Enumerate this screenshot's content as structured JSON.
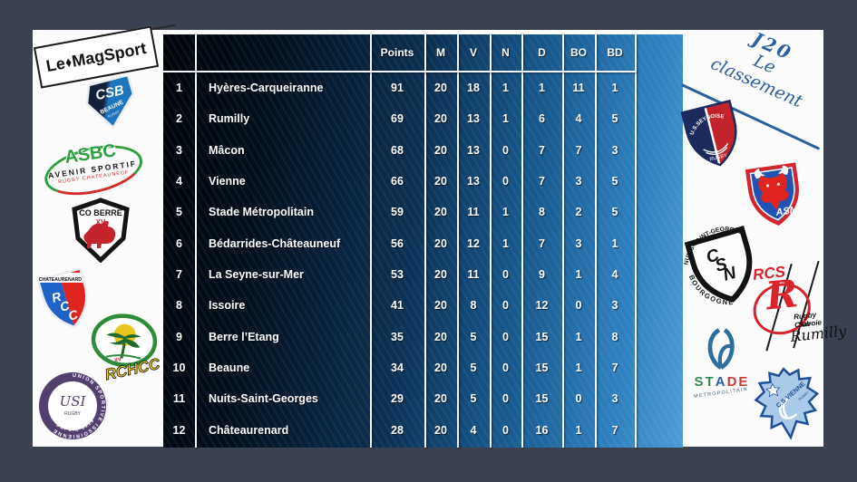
{
  "branding": {
    "prefix": "Le",
    "suffix": "MagSport"
  },
  "title": {
    "round": "J20",
    "label": "Le classement"
  },
  "table": {
    "columns": [
      "Points",
      "M",
      "V",
      "N",
      "D",
      "BO",
      "BD"
    ],
    "rows": [
      {
        "rank": "1",
        "team": "Hyères-Carqueiranne",
        "points": "91",
        "m": "20",
        "v": "18",
        "n": "1",
        "d": "1",
        "bo": "11",
        "bd": "1"
      },
      {
        "rank": "2",
        "team": "Rumilly",
        "points": "69",
        "m": "20",
        "v": "13",
        "n": "1",
        "d": "6",
        "bo": "4",
        "bd": "5"
      },
      {
        "rank": "3",
        "team": "Mâcon",
        "points": "68",
        "m": "20",
        "v": "13",
        "n": "0",
        "d": "7",
        "bo": "7",
        "bd": "3"
      },
      {
        "rank": "4",
        "team": "Vienne",
        "points": "66",
        "m": "20",
        "v": "13",
        "n": "0",
        "d": "7",
        "bo": "3",
        "bd": "5"
      },
      {
        "rank": "5",
        "team": "Stade Métropolitain",
        "points": "59",
        "m": "20",
        "v": "11",
        "n": "1",
        "d": "8",
        "bo": "2",
        "bd": "5"
      },
      {
        "rank": "6",
        "team": "Bédarrides-Châteauneuf",
        "points": "56",
        "m": "20",
        "v": "12",
        "n": "1",
        "d": "7",
        "bo": "3",
        "bd": "1"
      },
      {
        "rank": "7",
        "team": "La Seyne-sur-Mer",
        "points": "53",
        "m": "20",
        "v": "11",
        "n": "0",
        "d": "9",
        "bo": "1",
        "bd": "4"
      },
      {
        "rank": "8",
        "team": "Issoire",
        "points": "41",
        "m": "20",
        "v": "8",
        "n": "0",
        "d": "12",
        "bo": "0",
        "bd": "3"
      },
      {
        "rank": "9",
        "team": "Berre l’Etang",
        "points": "35",
        "m": "20",
        "v": "5",
        "n": "0",
        "d": "15",
        "bo": "1",
        "bd": "8"
      },
      {
        "rank": "10",
        "team": "Beaune",
        "points": "34",
        "m": "20",
        "v": "5",
        "n": "0",
        "d": "15",
        "bo": "1",
        "bd": "7"
      },
      {
        "rank": "11",
        "team": "Nuits-Saint-Georges",
        "points": "29",
        "m": "20",
        "v": "5",
        "n": "0",
        "d": "15",
        "bo": "0",
        "bd": "3"
      },
      {
        "rank": "12",
        "team": "Châteaurenard",
        "points": "28",
        "m": "20",
        "v": "4",
        "n": "0",
        "d": "16",
        "bo": "1",
        "bd": "7"
      }
    ]
  },
  "left_logos": [
    {
      "id": "csb-beaune",
      "abbr": "CSB",
      "line1": "BEAUNE",
      "line2": "RUGBY"
    },
    {
      "id": "asbc-avenir",
      "abbr": "ASBC",
      "title": "AVENIR SPORTIF",
      "subtitle": "RUGBY CHATEAUNEUF"
    },
    {
      "id": "co-berre",
      "title": "CO BERRE",
      "roman": "XV"
    },
    {
      "id": "rcc-chateaurenard",
      "abbr": "RCC",
      "title": "CHATEAURENARD"
    },
    {
      "id": "rchcc",
      "abbr": "RCHCC",
      "roman": "XV"
    },
    {
      "id": "us-issoire",
      "title": "UNION SPORTIVE ISSOIRIENNE",
      "center": "USI",
      "subtitle": "RUGBY",
      "since": "DEPUIS 1919"
    }
  ],
  "right_logos": [
    {
      "id": "us-seynoise",
      "title": "U.S.SEYNOISE",
      "subtitle": "RUGBY"
    },
    {
      "id": "asm",
      "abbr": "ASM"
    },
    {
      "id": "csn-nuits",
      "abbr": "CSN",
      "arc_top": "NUITS-SAINT-GEORGES",
      "arc_bottom": "BOURGOGNE"
    },
    {
      "id": "rcs-rumilly",
      "abbr": "RCS",
      "letter": "R",
      "line1": "Rugby Club",
      "line2": "Savoie",
      "line3": "Rumilly"
    },
    {
      "id": "stade-metropolitain",
      "title": "STADE",
      "subtitle": "METROPOLITAIN"
    },
    {
      "id": "cs-vienne",
      "title": "C.S VIENNE",
      "subtitle": "RUGBY"
    }
  ],
  "colors": {
    "accent_blue": "#2c5f9e",
    "board_light": "#4e9bd6",
    "board_dark": "#04121f",
    "background": "#3a4251"
  }
}
